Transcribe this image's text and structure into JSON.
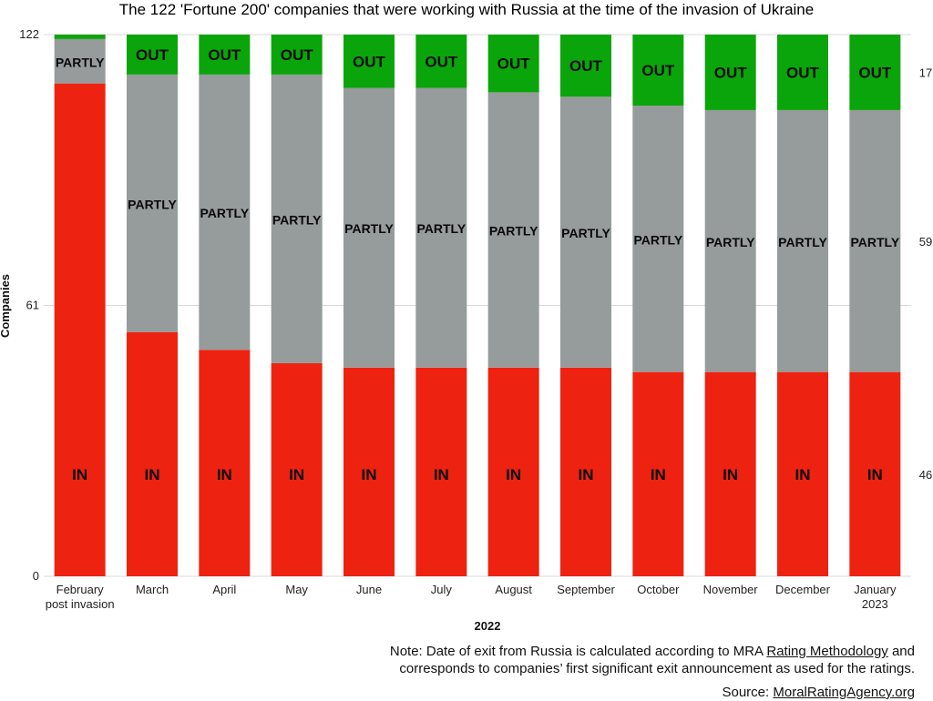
{
  "chart_data": {
    "type": "bar",
    "stacked": true,
    "title": "The 122 'Fortune 200' companies that were working with Russia at the time of the invasion of Ukraine",
    "xlabel": "2022",
    "ylabel": "Companies",
    "ylim": [
      0,
      122
    ],
    "yticks": [
      "0",
      "61",
      "122"
    ],
    "grid": true,
    "categories": [
      [
        "February",
        "post invasion"
      ],
      [
        "March"
      ],
      [
        "April"
      ],
      [
        "May"
      ],
      [
        "June"
      ],
      [
        "July"
      ],
      [
        "August"
      ],
      [
        "September"
      ],
      [
        "October"
      ],
      [
        "November"
      ],
      [
        "December"
      ],
      [
        "January",
        "2023"
      ]
    ],
    "series": [
      {
        "name": "IN",
        "color": "#ee2211",
        "values": [
          111,
          55,
          51,
          48,
          47,
          47,
          47,
          47,
          46,
          46,
          46,
          46
        ]
      },
      {
        "name": "PARTLY",
        "color": "#969b9b",
        "values": [
          10,
          58,
          62,
          65,
          63,
          63,
          62,
          61,
          60,
          59,
          59,
          59
        ]
      },
      {
        "name": "OUT",
        "color": "#0aa50a",
        "values": [
          1,
          9,
          9,
          9,
          12,
          12,
          13,
          14,
          16,
          17,
          17,
          17
        ]
      }
    ],
    "end_labels": [
      "46",
      "59",
      "17"
    ]
  },
  "note": {
    "line1_before": "Note: Date of exit from Russia is calculated according to MRA ",
    "line1_link": "Rating Methodology",
    "line1_after": " and",
    "line2": "corresponds to companies’ first significant exit announcement as used for the ratings.",
    "source_label": "Source:  ",
    "source_link": "MoralRatingAgency.org"
  }
}
